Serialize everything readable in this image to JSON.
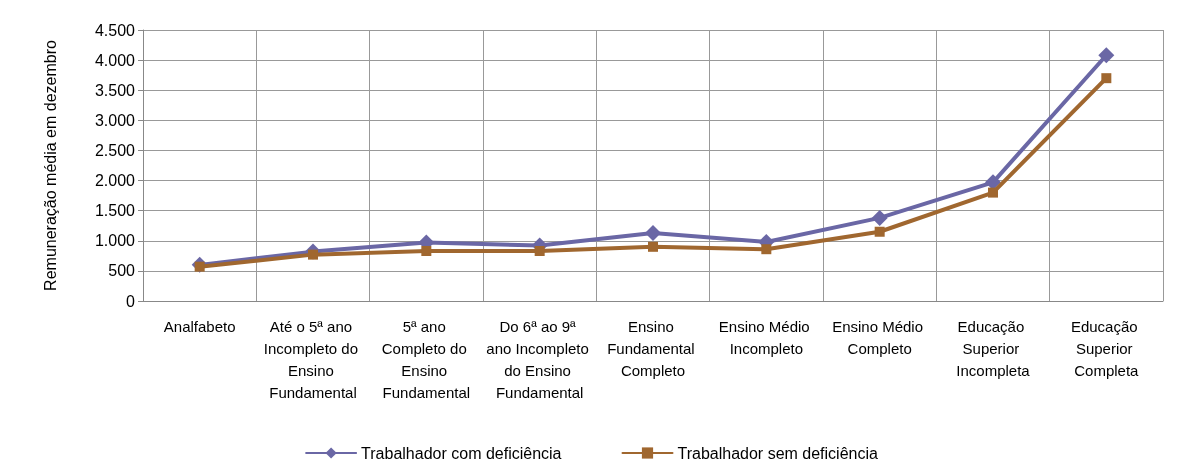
{
  "chart_data": {
    "type": "line",
    "ylabel": "Remuneração média em dezembro",
    "categories": [
      "Analfabeto",
      "Até o 5ª ano Incompleto do Ensino Fundamental",
      "5ª ano Completo do Ensino Fundamental",
      "Do 6ª ao 9ª ano Incompleto do Ensino Fundamental",
      "Ensino Fundamental Completo",
      "Ensino Médio Incompleto",
      "Ensino Médio Completo",
      "Educação Superior Incompleta",
      "Educação Superior Completa"
    ],
    "series": [
      {
        "name": "Trabalhador com deficiência",
        "color": "#6a67a5",
        "marker": "diamond",
        "values": [
          600,
          820,
          970,
          920,
          1130,
          980,
          1380,
          1970,
          4080
        ]
      },
      {
        "name": "Trabalhador sem deficiência",
        "color": "#a0672f",
        "marker": "square",
        "values": [
          570,
          770,
          830,
          830,
          900,
          860,
          1150,
          1800,
          3700
        ]
      }
    ],
    "ylim": [
      0,
      4500
    ],
    "yticks": [
      0,
      500,
      {
        "value": 1000,
        "label": "1.000"
      },
      {
        "value": 1500,
        "label": "1.500"
      },
      {
        "value": 2000,
        "label": "2.000"
      },
      {
        "value": 2500,
        "label": "2.500"
      },
      {
        "value": 3000,
        "label": "3.000"
      },
      {
        "value": 3500,
        "label": "3.500"
      },
      {
        "value": 4000,
        "label": "4.000"
      },
      {
        "value": 4500,
        "label": "4.500"
      }
    ],
    "grid": true,
    "legend": "bottom",
    "line_style": "solid"
  }
}
